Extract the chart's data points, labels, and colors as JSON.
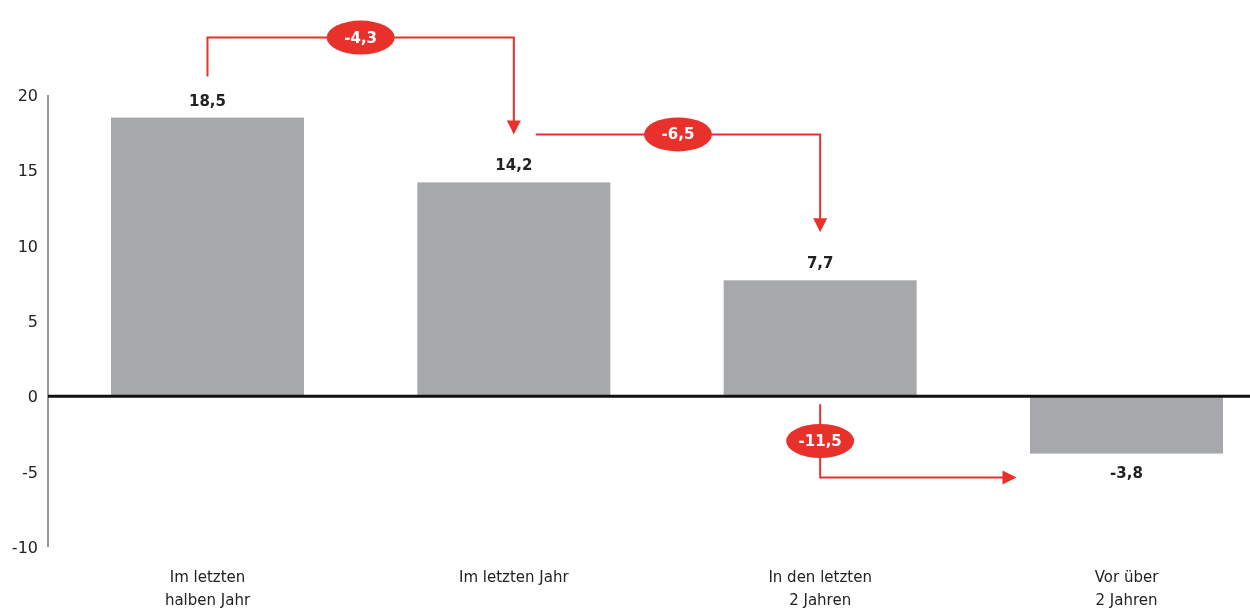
{
  "chart_data": {
    "type": "bar",
    "categories": [
      "Im letzten\nhalben Jahr",
      "Im letzten Jahr",
      "In den letzten\n2 Jahren",
      "Vor über\n2 Jahren"
    ],
    "values": [
      18.5,
      14.2,
      7.7,
      -3.8
    ],
    "value_labels": [
      "18,5",
      "14,2",
      "7,7",
      "-3,8"
    ],
    "color": "#a7a8ab",
    "ylim": [
      -10,
      20
    ],
    "yticks": [
      -10,
      -5,
      0,
      5,
      10,
      15,
      20
    ],
    "annotations": [
      "-4,3",
      "-6,5",
      "-11,5"
    ]
  }
}
